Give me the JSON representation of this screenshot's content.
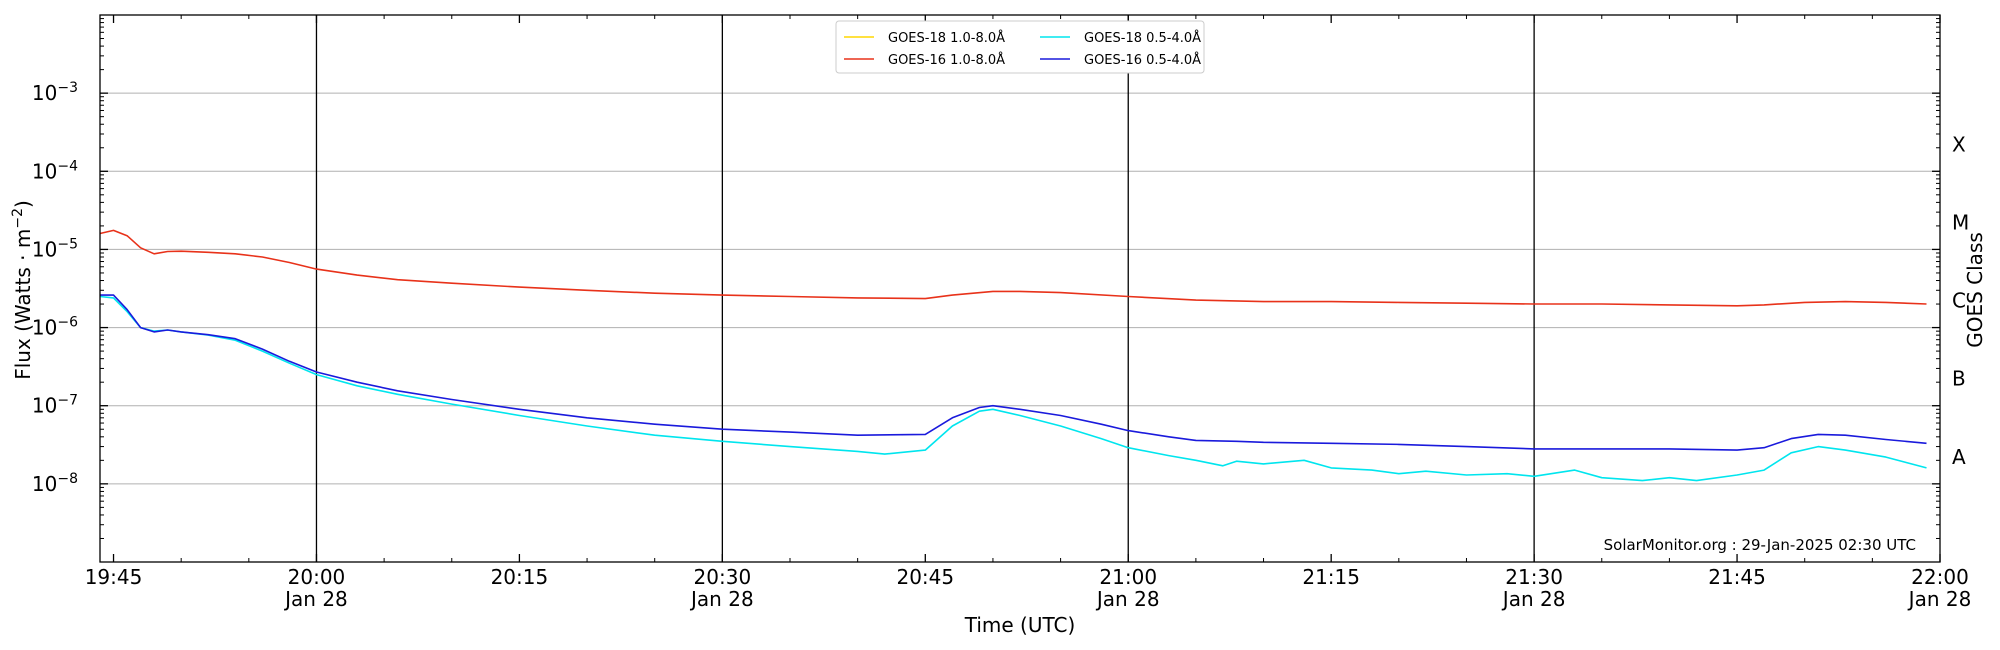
{
  "chart_data": {
    "type": "line",
    "xlabel": "Time (UTC)",
    "ylabel_main": "Flux (Watts · m",
    "ylabel_sup": "−2",
    "ylabel_close": ")",
    "y2label": "GOES Class",
    "credit": "SolarMonitor.org : 29-Jan-2025 02:30 UTC",
    "log_y": true,
    "ylim": [
      1e-09,
      0.01
    ],
    "xlim": [
      "19:44",
      "22:00"
    ],
    "grid": "horizontal",
    "legend_position": "top-center",
    "x_ticks": [
      {
        "t": "19:45",
        "label": "19:45",
        "date": ""
      },
      {
        "t": "20:00",
        "label": "20:00",
        "date": "Jan 28"
      },
      {
        "t": "20:15",
        "label": "20:15",
        "date": ""
      },
      {
        "t": "20:30",
        "label": "20:30",
        "date": "Jan 28"
      },
      {
        "t": "20:45",
        "label": "20:45",
        "date": ""
      },
      {
        "t": "21:00",
        "label": "21:00",
        "date": "Jan 28"
      },
      {
        "t": "21:15",
        "label": "21:15",
        "date": ""
      },
      {
        "t": "21:30",
        "label": "21:30",
        "date": "Jan 28"
      },
      {
        "t": "21:45",
        "label": "21:45",
        "date": ""
      },
      {
        "t": "22:00",
        "label": "22:00",
        "date": "Jan 28"
      }
    ],
    "vlines": [
      "20:00",
      "20:30",
      "21:00",
      "21:30"
    ],
    "y_ticks": [
      {
        "exp": -8,
        "value": 1e-08
      },
      {
        "exp": -7,
        "value": 1e-07
      },
      {
        "exp": -6,
        "value": 1e-06
      },
      {
        "exp": -5,
        "value": 1e-05
      },
      {
        "exp": -4,
        "value": 0.0001
      },
      {
        "exp": -3,
        "value": 0.001
      }
    ],
    "goes_classes": [
      {
        "label": "A",
        "value": 1e-08
      },
      {
        "label": "B",
        "value": 1e-07
      },
      {
        "label": "C",
        "value": 1e-06
      },
      {
        "label": "M",
        "value": 1e-05
      },
      {
        "label": "X",
        "value": 0.0001
      }
    ],
    "series": [
      {
        "name": "GOES-18 1.0-8.0Å",
        "color": "#ffd700",
        "legend_col": 0,
        "legend_row": 0,
        "points": []
      },
      {
        "name": "GOES-16 1.0-8.0Å",
        "color": "#e8321a",
        "legend_col": 0,
        "legend_row": 1,
        "points": [
          [
            "19:44",
            1.6e-05
          ],
          [
            "19:45",
            1.75e-05
          ],
          [
            "19:46",
            1.5e-05
          ],
          [
            "19:47",
            1.05e-05
          ],
          [
            "19:48",
            8.8e-06
          ],
          [
            "19:49",
            9.4e-06
          ],
          [
            "19:50",
            9.5e-06
          ],
          [
            "19:52",
            9.2e-06
          ],
          [
            "19:54",
            8.8e-06
          ],
          [
            "19:56",
            8e-06
          ],
          [
            "19:58",
            6.8e-06
          ],
          [
            "20:00",
            5.6e-06
          ],
          [
            "20:03",
            4.7e-06
          ],
          [
            "20:06",
            4.1e-06
          ],
          [
            "20:10",
            3.7e-06
          ],
          [
            "20:15",
            3.3e-06
          ],
          [
            "20:20",
            3e-06
          ],
          [
            "20:25",
            2.75e-06
          ],
          [
            "20:30",
            2.6e-06
          ],
          [
            "20:35",
            2.5e-06
          ],
          [
            "20:40",
            2.4e-06
          ],
          [
            "20:45",
            2.35e-06
          ],
          [
            "20:47",
            2.6e-06
          ],
          [
            "20:50",
            2.9e-06
          ],
          [
            "20:52",
            2.9e-06
          ],
          [
            "20:55",
            2.8e-06
          ],
          [
            "21:00",
            2.5e-06
          ],
          [
            "21:05",
            2.25e-06
          ],
          [
            "21:10",
            2.15e-06
          ],
          [
            "21:15",
            2.15e-06
          ],
          [
            "21:20",
            2.1e-06
          ],
          [
            "21:25",
            2.05e-06
          ],
          [
            "21:30",
            2e-06
          ],
          [
            "21:35",
            2e-06
          ],
          [
            "21:40",
            1.95e-06
          ],
          [
            "21:45",
            1.9e-06
          ],
          [
            "21:47",
            1.95e-06
          ],
          [
            "21:50",
            2.1e-06
          ],
          [
            "21:53",
            2.15e-06
          ],
          [
            "21:56",
            2.1e-06
          ],
          [
            "21:59",
            2e-06
          ]
        ]
      },
      {
        "name": "GOES-18 0.5-4.0Å",
        "color": "#00e5ee",
        "legend_col": 1,
        "legend_row": 0,
        "points": [
          [
            "19:44",
            2.5e-06
          ],
          [
            "19:45",
            2.4e-06
          ],
          [
            "19:46",
            1.6e-06
          ],
          [
            "19:47",
            1e-06
          ],
          [
            "19:48",
            9e-07
          ],
          [
            "19:49",
            9.3e-07
          ],
          [
            "19:50",
            8.8e-07
          ],
          [
            "19:52",
            8e-07
          ],
          [
            "19:54",
            6.9e-07
          ],
          [
            "19:56",
            5e-07
          ],
          [
            "19:58",
            3.5e-07
          ],
          [
            "20:00",
            2.5e-07
          ],
          [
            "20:03",
            1.8e-07
          ],
          [
            "20:06",
            1.4e-07
          ],
          [
            "20:10",
            1.05e-07
          ],
          [
            "20:15",
            7.5e-08
          ],
          [
            "20:20",
            5.5e-08
          ],
          [
            "20:25",
            4.2e-08
          ],
          [
            "20:30",
            3.5e-08
          ],
          [
            "20:35",
            3e-08
          ],
          [
            "20:40",
            2.6e-08
          ],
          [
            "20:42",
            2.4e-08
          ],
          [
            "20:45",
            2.7e-08
          ],
          [
            "20:47",
            5.5e-08
          ],
          [
            "20:49",
            8.5e-08
          ],
          [
            "20:50",
            9e-08
          ],
          [
            "20:52",
            7.5e-08
          ],
          [
            "20:55",
            5.5e-08
          ],
          [
            "20:58",
            3.8e-08
          ],
          [
            "21:00",
            2.9e-08
          ],
          [
            "21:03",
            2.3e-08
          ],
          [
            "21:05",
            2e-08
          ],
          [
            "21:07",
            1.7e-08
          ],
          [
            "21:08",
            1.95e-08
          ],
          [
            "21:10",
            1.8e-08
          ],
          [
            "21:13",
            2e-08
          ],
          [
            "21:15",
            1.6e-08
          ],
          [
            "21:18",
            1.5e-08
          ],
          [
            "21:20",
            1.35e-08
          ],
          [
            "21:22",
            1.45e-08
          ],
          [
            "21:25",
            1.3e-08
          ],
          [
            "21:28",
            1.35e-08
          ],
          [
            "21:30",
            1.25e-08
          ],
          [
            "21:33",
            1.5e-08
          ],
          [
            "21:35",
            1.2e-08
          ],
          [
            "21:38",
            1.1e-08
          ],
          [
            "21:40",
            1.2e-08
          ],
          [
            "21:42",
            1.1e-08
          ],
          [
            "21:45",
            1.3e-08
          ],
          [
            "21:47",
            1.5e-08
          ],
          [
            "21:49",
            2.5e-08
          ],
          [
            "21:51",
            3e-08
          ],
          [
            "21:53",
            2.7e-08
          ],
          [
            "21:56",
            2.2e-08
          ],
          [
            "21:59",
            1.6e-08
          ]
        ]
      },
      {
        "name": "GOES-16 0.5-4.0Å",
        "color": "#1a1adc",
        "legend_col": 1,
        "legend_row": 1,
        "points": [
          [
            "19:44",
            2.6e-06
          ],
          [
            "19:45",
            2.6e-06
          ],
          [
            "19:46",
            1.7e-06
          ],
          [
            "19:47",
            1e-06
          ],
          [
            "19:48",
            8.8e-07
          ],
          [
            "19:49",
            9.3e-07
          ],
          [
            "19:50",
            8.8e-07
          ],
          [
            "19:52",
            8.1e-07
          ],
          [
            "19:54",
            7.2e-07
          ],
          [
            "19:56",
            5.3e-07
          ],
          [
            "19:58",
            3.7e-07
          ],
          [
            "20:00",
            2.7e-07
          ],
          [
            "20:03",
            2e-07
          ],
          [
            "20:06",
            1.55e-07
          ],
          [
            "20:10",
            1.2e-07
          ],
          [
            "20:15",
            9e-08
          ],
          [
            "20:20",
            7e-08
          ],
          [
            "20:25",
            5.8e-08
          ],
          [
            "20:30",
            5e-08
          ],
          [
            "20:35",
            4.6e-08
          ],
          [
            "20:40",
            4.2e-08
          ],
          [
            "20:45",
            4.3e-08
          ],
          [
            "20:47",
            7e-08
          ],
          [
            "20:49",
            9.5e-08
          ],
          [
            "20:50",
            1e-07
          ],
          [
            "20:52",
            9e-08
          ],
          [
            "20:55",
            7.5e-08
          ],
          [
            "20:58",
            5.8e-08
          ],
          [
            "21:00",
            4.8e-08
          ],
          [
            "21:03",
            4e-08
          ],
          [
            "21:05",
            3.6e-08
          ],
          [
            "21:08",
            3.5e-08
          ],
          [
            "21:10",
            3.4e-08
          ],
          [
            "21:15",
            3.3e-08
          ],
          [
            "21:20",
            3.2e-08
          ],
          [
            "21:25",
            3e-08
          ],
          [
            "21:30",
            2.8e-08
          ],
          [
            "21:35",
            2.8e-08
          ],
          [
            "21:40",
            2.8e-08
          ],
          [
            "21:45",
            2.7e-08
          ],
          [
            "21:47",
            2.9e-08
          ],
          [
            "21:49",
            3.8e-08
          ],
          [
            "21:51",
            4.3e-08
          ],
          [
            "21:53",
            4.2e-08
          ],
          [
            "21:56",
            3.7e-08
          ],
          [
            "21:59",
            3.3e-08
          ]
        ]
      }
    ]
  }
}
